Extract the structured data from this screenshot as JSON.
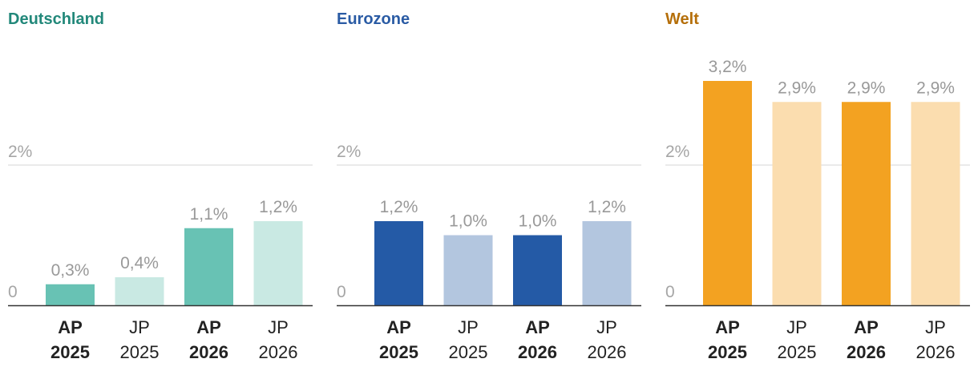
{
  "chart_data": [
    {
      "type": "bar",
      "title": "Deutschland",
      "title_color": "#22887a",
      "categories": [
        "AP 2025",
        "JP 2025",
        "AP 2026",
        "JP 2026"
      ],
      "category_lines": [
        [
          "AP",
          "2025"
        ],
        [
          "JP",
          "2025"
        ],
        [
          "AP",
          "2026"
        ],
        [
          "JP",
          "2026"
        ]
      ],
      "values": [
        0.3,
        0.4,
        1.1,
        1.2
      ],
      "value_labels": [
        "0,3%",
        "0,4%",
        "1,1%",
        "1,2%"
      ],
      "bar_colors": [
        "#68c2b4",
        "#c9e9e3",
        "#68c2b4",
        "#c9e9e3"
      ],
      "bold_categories": [
        true,
        false,
        true,
        false
      ],
      "yticks": [
        {
          "value": 0,
          "label": "0"
        },
        {
          "value": 2,
          "label": "2%"
        }
      ],
      "ylim": [
        0,
        3.2
      ],
      "grid": true
    },
    {
      "type": "bar",
      "title": "Eurozone",
      "title_color": "#2a5ba4",
      "categories": [
        "AP 2025",
        "JP 2025",
        "AP 2026",
        "JP 2026"
      ],
      "category_lines": [
        [
          "AP",
          "2025"
        ],
        [
          "JP",
          "2025"
        ],
        [
          "AP",
          "2026"
        ],
        [
          "JP",
          "2026"
        ]
      ],
      "values": [
        1.2,
        1.0,
        1.0,
        1.2
      ],
      "value_labels": [
        "1,2%",
        "1,0%",
        "1,0%",
        "1,2%"
      ],
      "bar_colors": [
        "#245aa6",
        "#b3c6df",
        "#245aa6",
        "#b3c6df"
      ],
      "bold_categories": [
        true,
        false,
        true,
        false
      ],
      "yticks": [
        {
          "value": 0,
          "label": "0"
        },
        {
          "value": 2,
          "label": "2%"
        }
      ],
      "ylim": [
        0,
        3.2
      ],
      "grid": true
    },
    {
      "type": "bar",
      "title": "Welt",
      "title_color": "#b56f0a",
      "categories": [
        "AP 2025",
        "JP 2025",
        "AP 2026",
        "JP 2026"
      ],
      "category_lines": [
        [
          "AP",
          "2025"
        ],
        [
          "JP",
          "2025"
        ],
        [
          "AP",
          "2026"
        ],
        [
          "JP",
          "2026"
        ]
      ],
      "values": [
        3.2,
        2.9,
        2.9,
        2.9
      ],
      "value_labels": [
        "3,2%",
        "2,9%",
        "2,9%",
        "2,9%"
      ],
      "bar_colors": [
        "#f3a221",
        "#fbddaf",
        "#f3a221",
        "#fbddaf"
      ],
      "bold_categories": [
        true,
        false,
        true,
        false
      ],
      "yticks": [
        {
          "value": 0,
          "label": "0"
        },
        {
          "value": 2,
          "label": "2%"
        }
      ],
      "ylim": [
        0,
        3.2
      ],
      "grid": true
    }
  ]
}
